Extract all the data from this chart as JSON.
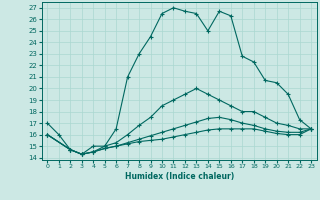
{
  "title": "",
  "xlabel": "Humidex (Indice chaleur)",
  "bg_color": "#cce8e4",
  "line_color": "#006860",
  "grid_color": "#aad8d0",
  "ylim": [
    13.8,
    27.5
  ],
  "xlim": [
    -0.5,
    23.5
  ],
  "yticks": [
    14,
    15,
    16,
    17,
    18,
    19,
    20,
    21,
    22,
    23,
    24,
    25,
    26,
    27
  ],
  "xticks": [
    0,
    1,
    2,
    3,
    4,
    5,
    6,
    7,
    8,
    9,
    10,
    11,
    12,
    13,
    14,
    15,
    16,
    17,
    18,
    19,
    20,
    21,
    22,
    23
  ],
  "lines": [
    {
      "x": [
        0,
        1,
        2,
        3,
        4,
        5,
        6,
        7,
        8,
        9,
        10,
        11,
        12,
        13,
        14,
        15,
        16,
        17,
        18,
        19,
        20,
        21,
        22,
        23
      ],
      "y": [
        17,
        16,
        14.7,
        14.3,
        15.0,
        15.0,
        16.5,
        21.0,
        23.0,
        24.5,
        26.5,
        27.0,
        26.7,
        26.5,
        25.0,
        26.7,
        26.3,
        22.8,
        22.3,
        20.7,
        20.5,
        19.5,
        17.3,
        16.5
      ]
    },
    {
      "x": [
        0,
        2,
        3,
        4,
        5,
        6,
        7,
        8,
        9,
        10,
        11,
        12,
        13,
        14,
        15,
        16,
        17,
        18,
        19,
        20,
        21,
        22,
        23
      ],
      "y": [
        16,
        14.7,
        14.3,
        14.5,
        15.0,
        15.3,
        16.0,
        16.8,
        17.5,
        18.5,
        19.0,
        19.5,
        20.0,
        19.5,
        19.0,
        18.5,
        18.0,
        18.0,
        17.5,
        17.0,
        16.8,
        16.5,
        16.5
      ]
    },
    {
      "x": [
        0,
        2,
        3,
        4,
        5,
        6,
        7,
        8,
        9,
        10,
        11,
        12,
        13,
        14,
        15,
        16,
        17,
        18,
        19,
        20,
        21,
        22,
        23
      ],
      "y": [
        16,
        14.7,
        14.3,
        14.5,
        14.8,
        15.0,
        15.3,
        15.6,
        15.9,
        16.2,
        16.5,
        16.8,
        17.1,
        17.4,
        17.5,
        17.3,
        17.0,
        16.8,
        16.5,
        16.3,
        16.2,
        16.2,
        16.5
      ]
    },
    {
      "x": [
        0,
        2,
        3,
        4,
        5,
        6,
        7,
        8,
        9,
        10,
        11,
        12,
        13,
        14,
        15,
        16,
        17,
        18,
        19,
        20,
        21,
        22,
        23
      ],
      "y": [
        16,
        14.7,
        14.3,
        14.5,
        14.8,
        15.0,
        15.2,
        15.4,
        15.5,
        15.6,
        15.8,
        16.0,
        16.2,
        16.4,
        16.5,
        16.5,
        16.5,
        16.5,
        16.3,
        16.1,
        16.0,
        16.0,
        16.5
      ]
    }
  ]
}
